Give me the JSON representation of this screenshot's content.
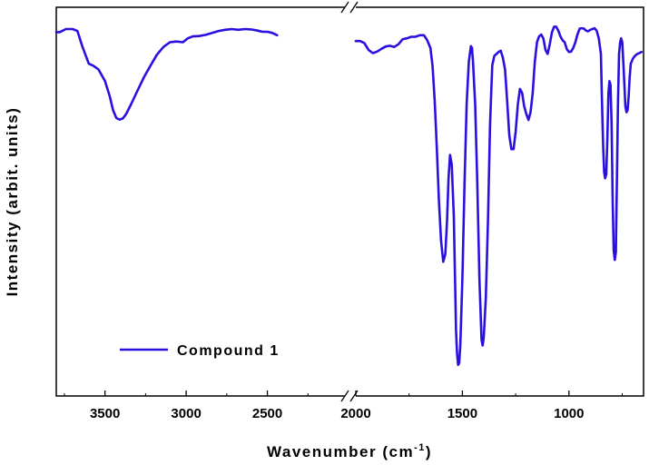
{
  "chart_data": {
    "type": "line",
    "title": "",
    "xlabel_main": "Wavenumber (cm",
    "xlabel_sup": "-1",
    "xlabel_close": ")",
    "ylabel": "Intensity (arbit. units)",
    "x_axis": "reversed, broken at 2000",
    "x_segments": [
      {
        "xlim": [
          3800,
          2000
        ],
        "ticks": [
          3500,
          3000,
          2500
        ]
      },
      {
        "xlim": [
          2000,
          650
        ],
        "ticks": [
          2000,
          1500,
          1000
        ]
      }
    ],
    "tick_labels": [
      "3500",
      "3000",
      "2500",
      "2000",
      "1500",
      "1000"
    ],
    "y_axis": "no tick labels; 0 = bottom, 100 = top",
    "ylim": [
      0,
      100
    ],
    "grid": false,
    "legend": {
      "position": "bottom-left",
      "entries": [
        "Compound 1"
      ]
    },
    "series": [
      {
        "name": "Compound 1",
        "color": "#2a10e0",
        "segments": [
          {
            "x": [
              3800,
              3780,
              3740,
              3700,
              3670,
              3640,
              3600,
              3570,
              3540,
              3500,
              3470,
              3450,
              3430,
              3410,
              3390,
              3370,
              3340,
              3300,
              3260,
              3220,
              3180,
              3140,
              3100,
              3060,
              3020,
              2990,
              2960,
              2920,
              2880,
              2840,
              2800,
              2760,
              2720,
              2680,
              2640,
              2600,
              2560,
              2530,
              2500,
              2470,
              2440
            ],
            "y": [
              93.6,
              93.6,
              94.4,
              94.4,
              93.9,
              90.0,
              85.5,
              84.9,
              84.0,
              81.0,
              77.0,
              73.5,
              71.5,
              71.1,
              71.4,
              72.5,
              75.0,
              78.5,
              82.0,
              85.0,
              87.8,
              89.8,
              91.0,
              91.2,
              91.0,
              92.0,
              92.5,
              92.6,
              92.9,
              93.4,
              93.9,
              94.2,
              94.4,
              94.2,
              94.4,
              94.3,
              94.0,
              93.7,
              93.7,
              93.4,
              92.8
            ]
          },
          {
            "x": [
              2000,
              1980,
              1960,
              1940,
              1920,
              1900,
              1880,
              1860,
              1840,
              1820,
              1800,
              1780,
              1760,
              1740,
              1720,
              1700,
              1680,
              1665,
              1650,
              1640,
              1630,
              1620,
              1610,
              1600,
              1590,
              1580,
              1572,
              1565,
              1558,
              1550,
              1540,
              1530,
              1525,
              1520,
              1515,
              1510,
              1500,
              1490,
              1480,
              1470,
              1460,
              1455,
              1450,
              1440,
              1430,
              1420,
              1410,
              1405,
              1400,
              1390,
              1380,
              1370,
              1360,
              1350,
              1340,
              1330,
              1320,
              1310,
              1300,
              1290,
              1280,
              1270,
              1260,
              1250,
              1240,
              1230,
              1220,
              1210,
              1200,
              1190,
              1180,
              1170,
              1160,
              1150,
              1140,
              1130,
              1120,
              1110,
              1100,
              1090,
              1080,
              1070,
              1060,
              1050,
              1040,
              1030,
              1020,
              1010,
              1000,
              990,
              980,
              970,
              960,
              950,
              940,
              930,
              920,
              910,
              900,
              890,
              880,
              870,
              860,
              850,
              845,
              840,
              835,
              830,
              825,
              820,
              815,
              810,
              805,
              800,
              795,
              790,
              785,
              780,
              775,
              770,
              765,
              760,
              755,
              750,
              745,
              740,
              735,
              730,
              725,
              720,
              715,
              710,
              700,
              690,
              680,
              670,
              660
            ],
            "y": [
              91.3,
              91.3,
              90.8,
              89.0,
              88.2,
              88.6,
              89.3,
              89.9,
              90.1,
              89.8,
              90.5,
              91.8,
              92.0,
              92.4,
              92.4,
              92.8,
              92.8,
              91.5,
              89.5,
              85.0,
              76.0,
              64.0,
              50.0,
              40.0,
              34.5,
              36.5,
              45.0,
              55.8,
              62.0,
              59.5,
              46.0,
              17.0,
              11.0,
              8.0,
              8.5,
              13.0,
              30.0,
              55.0,
              75.0,
              86.0,
              90.0,
              89.5,
              86.0,
              75.0,
              55.0,
              30.0,
              14.5,
              13.0,
              15.0,
              25.0,
              45.0,
              70.0,
              85.0,
              87.5,
              88.0,
              88.5,
              88.8,
              87.0,
              84.0,
              76.0,
              67.0,
              63.5,
              63.5,
              68.0,
              75.0,
              79.0,
              78.0,
              74.5,
              72.5,
              71.0,
              73.0,
              78.0,
              86.0,
              91.0,
              92.5,
              93.0,
              92.0,
              89.0,
              88.0,
              90.5,
              93.5,
              95.0,
              95.0,
              94.0,
              92.5,
              91.5,
              91.0,
              89.2,
              88.5,
              88.6,
              89.5,
              91.0,
              93.0,
              94.5,
              94.6,
              94.5,
              94.0,
              93.8,
              94.2,
              94.4,
              94.6,
              94.0,
              92.0,
              88.0,
              76.0,
              65.0,
              57.5,
              56.0,
              57.0,
              66.0,
              78.0,
              81.0,
              80.0,
              70.0,
              50.0,
              37.5,
              35.0,
              37.0,
              55.0,
              75.0,
              88.0,
              91.0,
              92.0,
              91.0,
              86.0,
              80.0,
              74.5,
              73.0,
              73.5,
              77.0,
              82.0,
              85.5,
              86.8,
              87.5,
              88.0,
              88.2,
              88.5
            ]
          }
        ]
      }
    ]
  }
}
